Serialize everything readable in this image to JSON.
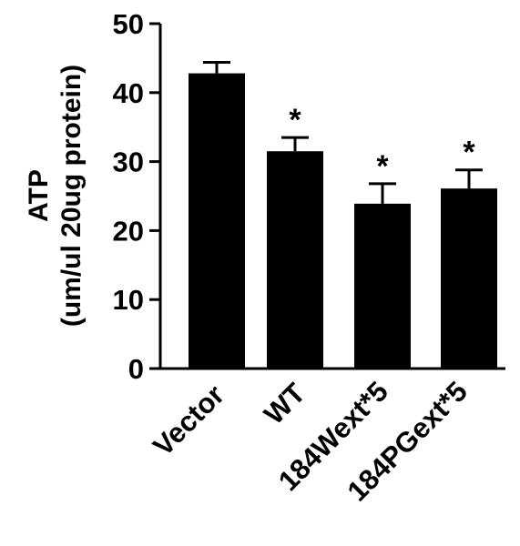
{
  "chart_data": {
    "type": "bar",
    "categories": [
      "Vector",
      "WT",
      "184Wext*5",
      "184PGext*5"
    ],
    "values": [
      42.8,
      31.5,
      23.9,
      26.1
    ],
    "errors": [
      1.6,
      2.0,
      2.9,
      2.7
    ],
    "significance": [
      "",
      "*",
      "*",
      "*"
    ],
    "ylabel_line1": "ATP",
    "ylabel_line2": "(um/ul 20ug protein)",
    "ylim": [
      0,
      50
    ],
    "yticks": [
      0,
      10,
      20,
      30,
      40,
      50
    ],
    "grid": false,
    "bar_color": "#000000"
  }
}
